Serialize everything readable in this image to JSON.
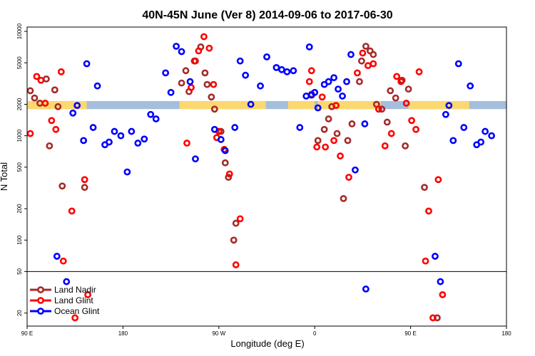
{
  "chart_data": {
    "type": "scatter",
    "title": "40N-45N June (Ver 8)   2014-09-06 to 2017-06-30",
    "xlabel": "Longitude (deg E)",
    "ylabel": "N Total",
    "xlim": [
      90,
      540
    ],
    "ylim": [
      15,
      11000
    ],
    "y_scale": "log",
    "x_ticks": [
      {
        "value": 90,
        "label": "90 E"
      },
      {
        "value": 180,
        "label": "180"
      },
      {
        "value": 270,
        "label": "90 W"
      },
      {
        "value": 360,
        "label": "0"
      },
      {
        "value": 450,
        "label": "90 E"
      },
      {
        "value": 540,
        "label": "180"
      }
    ],
    "y_ticks": [
      {
        "value": 20,
        "label": "20"
      },
      {
        "value": 50,
        "label": "50"
      },
      {
        "value": 100,
        "label": "100"
      },
      {
        "value": 200,
        "label": "200"
      },
      {
        "value": 500,
        "label": "500"
      },
      {
        "value": 1000,
        "label": "1000"
      },
      {
        "value": 2000,
        "label": "2000"
      },
      {
        "value": 5000,
        "label": "5000"
      },
      {
        "value": 10000,
        "label": "10000"
      }
    ],
    "reference_line": 50,
    "map_strip": {
      "y_low": 1800,
      "y_high": 2150,
      "ocean_color": "#a5bedd",
      "land_color": "#fcd870",
      "land_ranges": [
        [
          90,
          146
        ],
        [
          233,
          314
        ],
        [
          335,
          360
        ],
        [
          363,
          422
        ],
        [
          448,
          505
        ]
      ]
    },
    "legend_position": "bottom-left",
    "series": [
      {
        "name": "Land Nadir",
        "color": "#a52a2a",
        "points": [
          [
            93,
            2700
          ],
          [
            97,
            2300
          ],
          [
            102,
            2050
          ],
          [
            108,
            3500
          ],
          [
            111,
            800
          ],
          [
            116,
            2750
          ],
          [
            119,
            1900
          ],
          [
            123,
            330
          ],
          [
            144,
            320
          ],
          [
            235,
            3200
          ],
          [
            239,
            4200
          ],
          [
            242,
            2650
          ],
          [
            247,
            5200
          ],
          [
            253,
            7100
          ],
          [
            257,
            4000
          ],
          [
            259,
            3100
          ],
          [
            263,
            2350
          ],
          [
            266,
            1800
          ],
          [
            272,
            1100
          ],
          [
            276,
            550
          ],
          [
            279,
            400
          ],
          [
            284,
            100
          ],
          [
            286,
            145
          ],
          [
            357,
            2500
          ],
          [
            363,
            900
          ],
          [
            369,
            1150
          ],
          [
            373,
            1450
          ],
          [
            376,
            1900
          ],
          [
            381,
            1050
          ],
          [
            387,
            250
          ],
          [
            391,
            900
          ],
          [
            395,
            1300
          ],
          [
            402,
            3300
          ],
          [
            404,
            5200
          ],
          [
            408,
            7200
          ],
          [
            412,
            6500
          ],
          [
            415,
            6000
          ],
          [
            418,
            2000
          ],
          [
            423,
            1800
          ],
          [
            428,
            1350
          ],
          [
            431,
            2700
          ],
          [
            436,
            2300
          ],
          [
            442,
            3400
          ],
          [
            445,
            800
          ],
          [
            448,
            2800
          ],
          [
            463,
            320
          ],
          [
            475,
            18
          ]
        ]
      },
      {
        "name": "Land Glint",
        "color": "#ff0000",
        "points": [
          [
            93,
            1050
          ],
          [
            99,
            3700
          ],
          [
            103,
            3400
          ],
          [
            107,
            2050
          ],
          [
            113,
            1400
          ],
          [
            117,
            1150
          ],
          [
            122,
            4100
          ],
          [
            124,
            63
          ],
          [
            132,
            190
          ],
          [
            135,
            18
          ],
          [
            144,
            380
          ],
          [
            147,
            30
          ],
          [
            240,
            850
          ],
          [
            244,
            2900
          ],
          [
            248,
            5200
          ],
          [
            251,
            6500
          ],
          [
            256,
            8900
          ],
          [
            261,
            6900
          ],
          [
            265,
            3100
          ],
          [
            268,
            960
          ],
          [
            270,
            1100
          ],
          [
            275,
            740
          ],
          [
            280,
            430
          ],
          [
            286,
            58
          ],
          [
            290,
            160
          ],
          [
            355,
            3300
          ],
          [
            357,
            4200
          ],
          [
            362,
            780
          ],
          [
            367,
            2350
          ],
          [
            370,
            780
          ],
          [
            378,
            900
          ],
          [
            380,
            1950
          ],
          [
            384,
            640
          ],
          [
            392,
            400
          ],
          [
            400,
            4000
          ],
          [
            405,
            6200
          ],
          [
            410,
            4700
          ],
          [
            415,
            4900
          ],
          [
            420,
            1800
          ],
          [
            426,
            800
          ],
          [
            432,
            1050
          ],
          [
            437,
            3700
          ],
          [
            441,
            3300
          ],
          [
            446,
            2050
          ],
          [
            451,
            1400
          ],
          [
            455,
            1150
          ],
          [
            458,
            4100
          ],
          [
            464,
            63
          ],
          [
            467,
            190
          ],
          [
            471,
            18
          ],
          [
            476,
            380
          ],
          [
            480,
            30
          ]
        ]
      },
      {
        "name": "Ocean Glint",
        "color": "#0000ff",
        "points": [
          [
            118,
            70
          ],
          [
            127,
            40
          ],
          [
            133,
            1650
          ],
          [
            137,
            1950
          ],
          [
            143,
            900
          ],
          [
            146,
            4900
          ],
          [
            152,
            1200
          ],
          [
            156,
            3000
          ],
          [
            163,
            820
          ],
          [
            167,
            870
          ],
          [
            172,
            1100
          ],
          [
            178,
            1000
          ],
          [
            184,
            450
          ],
          [
            188,
            1100
          ],
          [
            194,
            850
          ],
          [
            200,
            930
          ],
          [
            206,
            1600
          ],
          [
            211,
            1450
          ],
          [
            220,
            4000
          ],
          [
            225,
            2600
          ],
          [
            230,
            7200
          ],
          [
            235,
            6400
          ],
          [
            243,
            3300
          ],
          [
            248,
            600
          ],
          [
            266,
            1150
          ],
          [
            272,
            920
          ],
          [
            276,
            720
          ],
          [
            285,
            1200
          ],
          [
            290,
            5200
          ],
          [
            295,
            3800
          ],
          [
            300,
            2000
          ],
          [
            309,
            3000
          ],
          [
            315,
            5700
          ],
          [
            324,
            4500
          ],
          [
            329,
            4300
          ],
          [
            334,
            4100
          ],
          [
            340,
            4200
          ],
          [
            346,
            1200
          ],
          [
            352,
            2400
          ],
          [
            355,
            7100
          ],
          [
            357,
            2450
          ],
          [
            360,
            2600
          ],
          [
            363,
            1850
          ],
          [
            369,
            3100
          ],
          [
            373,
            3300
          ],
          [
            378,
            3600
          ],
          [
            382,
            2800
          ],
          [
            386,
            2400
          ],
          [
            390,
            3300
          ],
          [
            394,
            6000
          ],
          [
            398,
            470
          ],
          [
            407,
            1300
          ],
          [
            408,
            34
          ],
          [
            473,
            70
          ],
          [
            478,
            40
          ],
          [
            483,
            1600
          ],
          [
            486,
            1950
          ],
          [
            490,
            900
          ],
          [
            495,
            4900
          ],
          [
            500,
            1200
          ],
          [
            506,
            3000
          ],
          [
            512,
            820
          ],
          [
            516,
            870
          ],
          [
            520,
            1100
          ],
          [
            526,
            1000
          ]
        ]
      }
    ]
  }
}
